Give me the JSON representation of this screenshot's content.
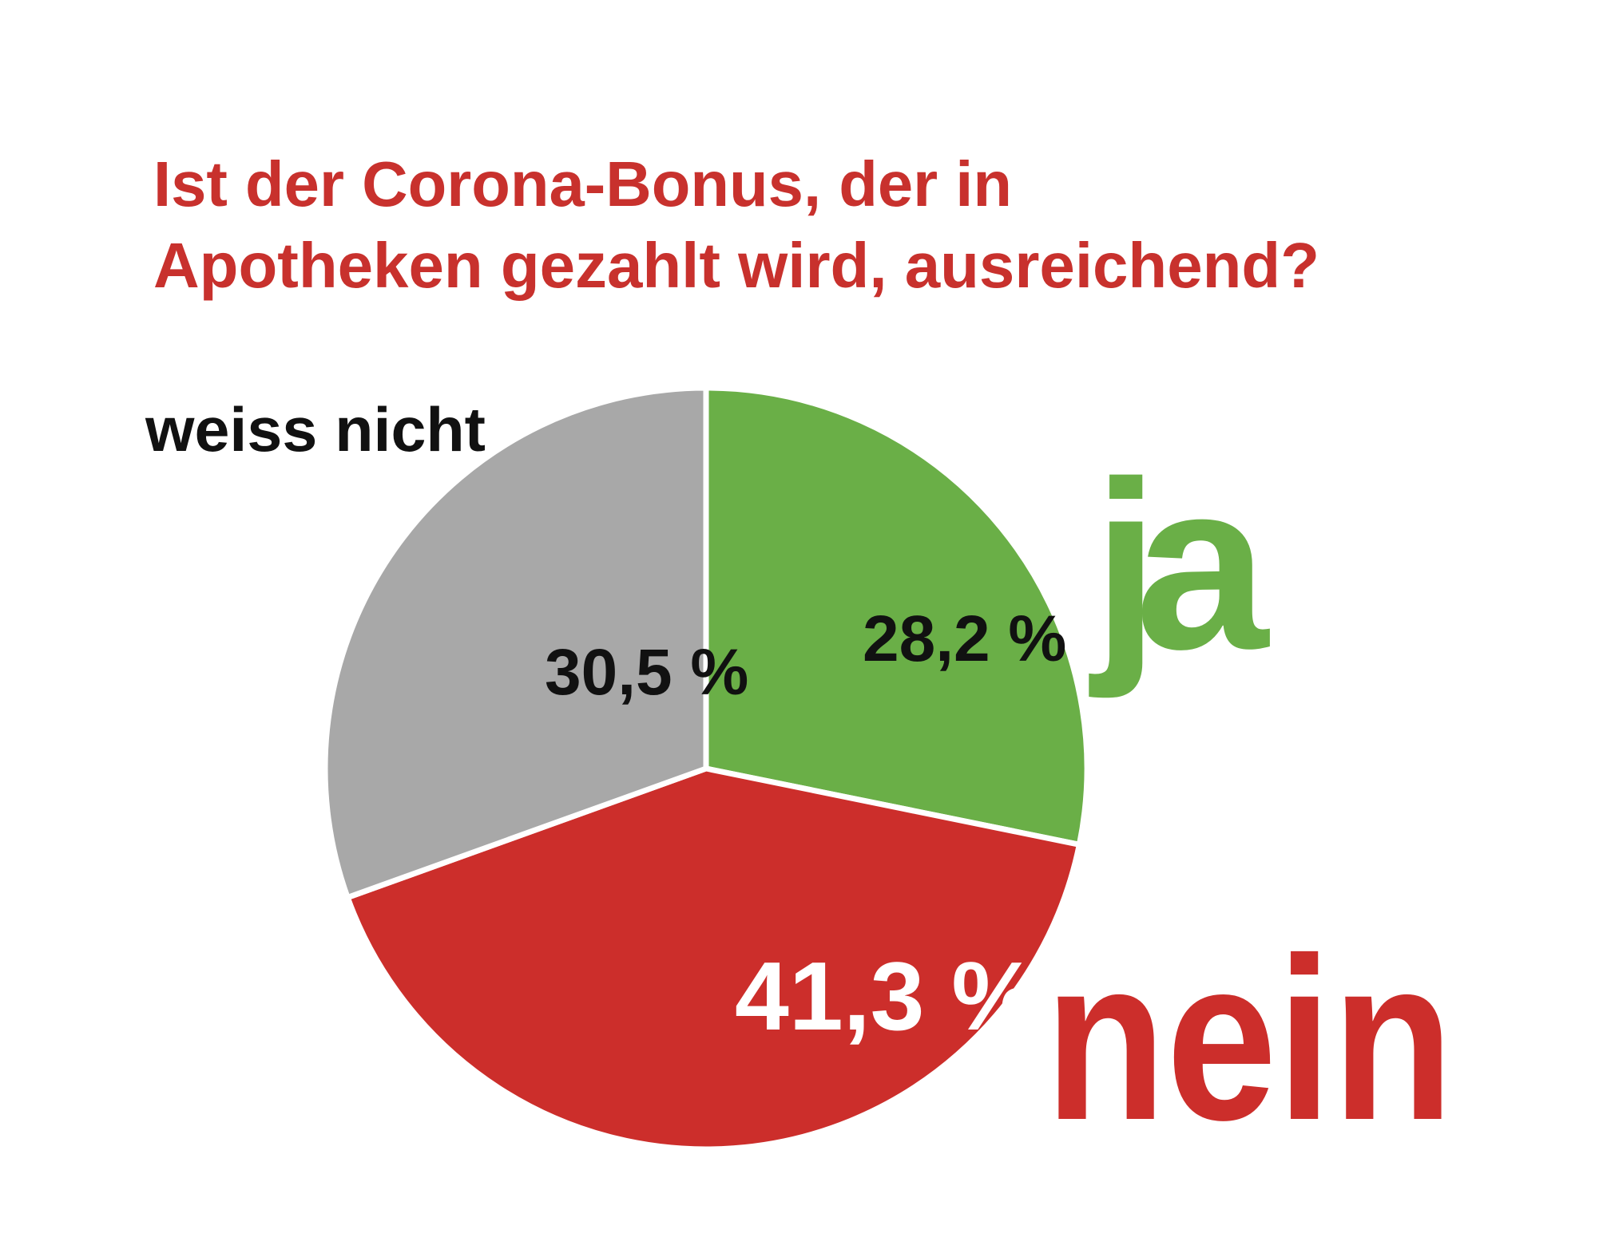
{
  "chart_data": {
    "type": "pie",
    "title": "Ist der Corona-Bonus, der in Apotheken gezahlt wird, ausreichend?",
    "title_lines": [
      "Ist der Corona-Bonus, der in",
      "Apotheken gezahlt wird, ausreichend?"
    ],
    "title_color": "#c8312d",
    "start_angle": "12 o'clock",
    "direction": "clockwise",
    "slices": [
      {
        "key": "ja",
        "category": "ja",
        "value": 28.2,
        "value_label": "28,2 %",
        "color": "#6aaf47",
        "category_color": "#6aaf47",
        "value_label_color": "#111111"
      },
      {
        "key": "nein",
        "category": "nein",
        "value": 41.3,
        "value_label": "41,3 %",
        "color": "#cc2e2b",
        "category_color": "#cc2e2b",
        "value_label_color": "#ffffff"
      },
      {
        "key": "weiss-nicht",
        "category": "weiss nicht",
        "value": 30.5,
        "value_label": "30,5 %",
        "color": "#a8a8a8",
        "category_color": "#111111",
        "value_label_color": "#111111"
      }
    ]
  }
}
